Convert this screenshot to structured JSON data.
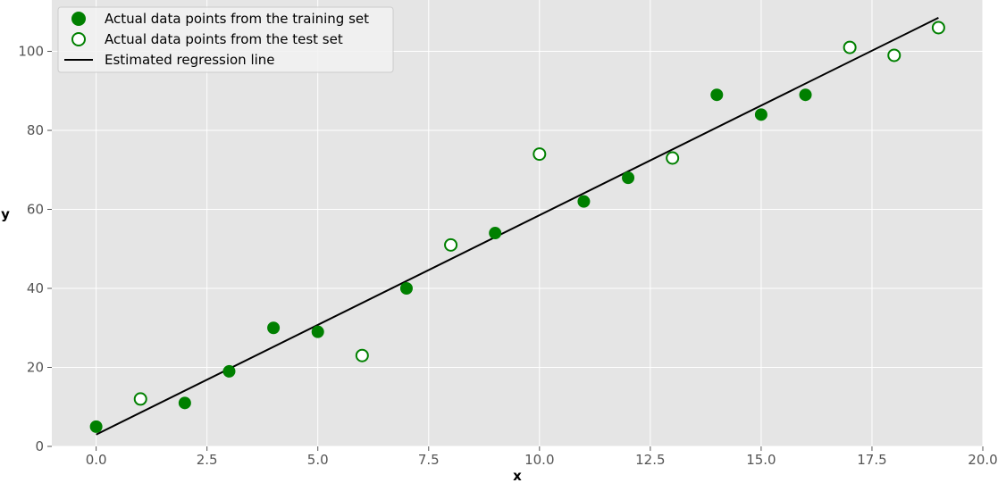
{
  "chart_data": {
    "type": "scatter",
    "title": "",
    "xlabel": "x",
    "ylabel": "y",
    "xlim": [
      -1,
      20
    ],
    "ylim": [
      0,
      113
    ],
    "xticks": [
      0.0,
      2.5,
      5.0,
      7.5,
      10.0,
      12.5,
      15.0,
      17.5,
      20.0
    ],
    "xtick_labels": [
      "0.0",
      "2.5",
      "5.0",
      "7.5",
      "10.0",
      "12.5",
      "15.0",
      "17.5",
      "20.0"
    ],
    "yticks": [
      0,
      20,
      40,
      60,
      80,
      100
    ],
    "ytick_labels": [
      "0",
      "20",
      "40",
      "60",
      "80",
      "100"
    ],
    "grid": true,
    "legend_position": "top-left",
    "series": [
      {
        "name": "Actual data points from the training set",
        "style": "filled-circle",
        "color": "#008000",
        "x": [
          0,
          2,
          3,
          4,
          5,
          7,
          9,
          11,
          12,
          14,
          15,
          16
        ],
        "y": [
          5,
          11,
          19,
          30,
          29,
          40,
          54,
          62,
          68,
          89,
          84,
          89
        ]
      },
      {
        "name": "Actual data points from the test set",
        "style": "hollow-circle",
        "color": "#008000",
        "x": [
          1,
          6,
          8,
          10,
          13,
          17,
          18,
          19
        ],
        "y": [
          12,
          23,
          51,
          74,
          73,
          101,
          99,
          106
        ]
      },
      {
        "name": "Estimated regression line",
        "style": "line",
        "color": "#000000",
        "x": [
          0,
          19
        ],
        "y": [
          3,
          108.5
        ]
      }
    ],
    "colors": {
      "plot_background": "#e5e5e5",
      "grid": "#ffffff",
      "marker": "#008000",
      "line": "#000000"
    }
  }
}
